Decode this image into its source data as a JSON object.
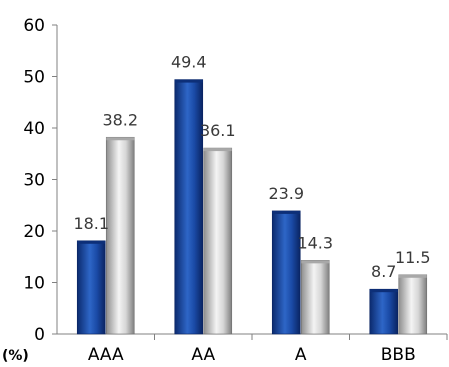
{
  "chart_data": {
    "type": "bar",
    "categories": [
      "AAA",
      "AA",
      "A",
      "BBB"
    ],
    "series": [
      {
        "values": [
          18.1,
          49.4,
          23.9,
          8.7
        ],
        "color": "#1f4e9c"
      },
      {
        "values": [
          38.2,
          36.1,
          14.3,
          11.5
        ],
        "color": "#c9c9c9"
      }
    ],
    "y_unit_label": "(%)",
    "ylim": [
      0,
      60
    ],
    "yticks": [
      0,
      10,
      20,
      30,
      40,
      50,
      60
    ],
    "grid": false,
    "legend": "none",
    "data_labels": true
  }
}
